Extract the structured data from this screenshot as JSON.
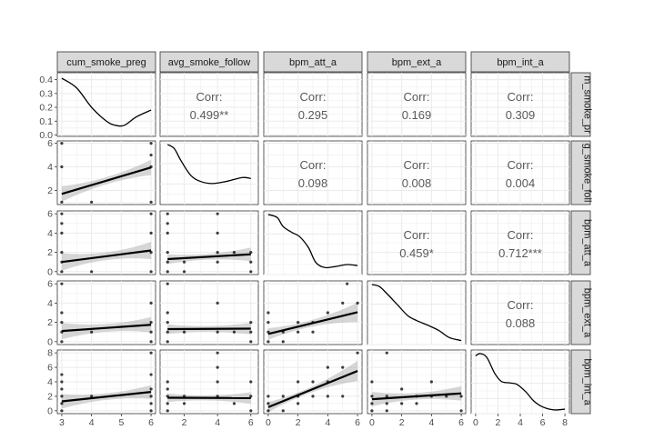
{
  "chart_data": {
    "type": "scatter-matrix",
    "variables": [
      "cum_smoke_preg",
      "avg_smoke_follow",
      "bpm_att_a",
      "bpm_ext_a",
      "bpm_int_a"
    ],
    "row_strip_labels": [
      "m_smoke_pr",
      "g_smoke_foll",
      "bpm_att_a",
      "bpm_ext_a",
      "bpm_int_a"
    ],
    "corr_label": "Corr:",
    "correlations": [
      {
        "row": 0,
        "col": 1,
        "value": "0.499**"
      },
      {
        "row": 0,
        "col": 2,
        "value": "0.295"
      },
      {
        "row": 0,
        "col": 3,
        "value": "0.169"
      },
      {
        "row": 0,
        "col": 4,
        "value": "0.309"
      },
      {
        "row": 1,
        "col": 2,
        "value": "0.098"
      },
      {
        "row": 1,
        "col": 3,
        "value": "0.008"
      },
      {
        "row": 1,
        "col": 4,
        "value": "0.004"
      },
      {
        "row": 2,
        "col": 3,
        "value": "0.459*"
      },
      {
        "row": 2,
        "col": 4,
        "value": "0.712***"
      },
      {
        "row": 3,
        "col": 4,
        "value": "0.088"
      }
    ],
    "x_axes": [
      {
        "range": [
          2.85,
          6.15
        ],
        "ticks": [
          3,
          4,
          5,
          6
        ]
      },
      {
        "range": [
          0.55,
          6.45
        ],
        "ticks": [
          2,
          4,
          6
        ]
      },
      {
        "range": [
          -0.3,
          6.3
        ],
        "ticks": [
          0,
          2,
          4,
          6
        ]
      },
      {
        "range": [
          -0.3,
          6.3
        ],
        "ticks": [
          0,
          2,
          4,
          6
        ]
      },
      {
        "range": [
          -0.4,
          8.4
        ],
        "ticks": [
          0,
          2,
          4,
          6,
          8
        ]
      }
    ],
    "y_axes": [
      {
        "range": [
          -0.01,
          0.45
        ],
        "ticks": [
          0.0,
          0.1,
          0.2,
          0.3,
          0.4
        ],
        "tick_labels": [
          "0.0",
          "0.1",
          "0.2",
          "0.3",
          "0.4"
        ]
      },
      {
        "range": [
          0.8,
          6.2
        ],
        "ticks": [
          2,
          4,
          6
        ],
        "tick_labels": [
          "2",
          "4",
          "6"
        ]
      },
      {
        "range": [
          -0.3,
          6.3
        ],
        "ticks": [
          0,
          2,
          4,
          6
        ],
        "tick_labels": [
          "0",
          "2",
          "4",
          "6"
        ]
      },
      {
        "range": [
          -0.3,
          6.3
        ],
        "ticks": [
          0,
          2,
          4,
          6
        ],
        "tick_labels": [
          "0",
          "2",
          "4",
          "6"
        ]
      },
      {
        "range": [
          -0.4,
          8.4
        ],
        "ticks": [
          0,
          2,
          4,
          6,
          8
        ],
        "tick_labels": [
          "0",
          "2",
          "4",
          "6",
          "8"
        ]
      }
    ],
    "densities": [
      {
        "var": 0,
        "x": [
          3.0,
          3.5,
          4.0,
          4.5,
          4.8,
          5.1,
          5.5,
          6.0
        ],
        "y": [
          0.41,
          0.34,
          0.2,
          0.1,
          0.07,
          0.07,
          0.13,
          0.18
        ]
      },
      {
        "var": 1,
        "x": [
          1.0,
          1.4,
          1.8,
          2.4,
          3.0,
          3.7,
          4.5,
          5.5,
          6.0
        ],
        "y": [
          6.0,
          5.6,
          4.4,
          2.9,
          2.3,
          2.1,
          2.3,
          2.7,
          2.6
        ]
      },
      {
        "var": 2,
        "x": [
          0.0,
          0.6,
          1.0,
          1.6,
          2.1,
          2.7,
          3.2,
          3.8,
          4.5,
          5.3,
          6.0
        ],
        "y": [
          6.0,
          5.7,
          4.8,
          4.2,
          3.8,
          2.7,
          1.2,
          0.7,
          0.8,
          1.0,
          0.9
        ]
      },
      {
        "var": 3,
        "x": [
          0.0,
          0.5,
          1.0,
          1.7,
          2.4,
          3.0,
          3.8,
          4.5,
          5.2,
          6.0
        ],
        "y": [
          6.0,
          5.8,
          5.1,
          4.0,
          2.9,
          2.4,
          1.9,
          1.4,
          0.7,
          0.4
        ]
      },
      {
        "var": 4,
        "x": [
          0.0,
          0.4,
          1.0,
          1.7,
          2.3,
          3.0,
          3.7,
          4.5,
          5.2,
          6.0,
          7.0,
          8.0
        ],
        "y": [
          7.7,
          8.0,
          7.5,
          5.4,
          4.3,
          4.1,
          3.9,
          2.9,
          1.7,
          0.9,
          0.5,
          0.6
        ]
      }
    ],
    "scatter_panels": [
      {
        "row": 1,
        "col": 0,
        "points": [
          [
            3,
            6
          ],
          [
            3,
            4
          ],
          [
            3,
            1
          ],
          [
            4,
            1
          ],
          [
            6,
            6
          ],
          [
            6,
            5
          ],
          [
            6,
            4
          ],
          [
            6,
            1
          ]
        ],
        "fit": [
          [
            3,
            1.7
          ],
          [
            6,
            3.95
          ]
        ],
        "band_half_width": [
          0.65,
          0.3,
          0.65
        ]
      },
      {
        "row": 2,
        "col": 0,
        "points": [
          [
            3,
            6
          ],
          [
            3,
            5
          ],
          [
            3,
            4
          ],
          [
            3,
            2
          ],
          [
            3,
            1
          ],
          [
            3,
            0
          ],
          [
            4,
            0
          ],
          [
            6,
            6
          ],
          [
            6,
            4
          ],
          [
            6,
            2
          ],
          [
            6,
            0
          ]
        ],
        "fit": [
          [
            3,
            1.0
          ],
          [
            6,
            2.2
          ]
        ],
        "band_half_width": [
          0.9,
          0.4,
          0.9
        ]
      },
      {
        "row": 2,
        "col": 1,
        "points": [
          [
            1,
            6
          ],
          [
            1,
            5
          ],
          [
            1,
            4
          ],
          [
            1,
            2
          ],
          [
            1,
            1
          ],
          [
            1,
            0
          ],
          [
            2,
            0
          ],
          [
            2,
            1
          ],
          [
            4,
            6
          ],
          [
            4,
            4
          ],
          [
            4,
            2
          ],
          [
            4,
            1
          ],
          [
            5,
            2
          ],
          [
            6,
            2
          ],
          [
            6,
            1
          ],
          [
            6,
            0
          ]
        ],
        "fit": [
          [
            1,
            1.3
          ],
          [
            6,
            1.8
          ]
        ],
        "band_half_width": [
          0.5,
          0.3,
          0.7
        ]
      },
      {
        "row": 2,
        "col": 2,
        "points": [],
        "fit": [],
        "band_half_width": []
      },
      {
        "row": 3,
        "col": 0,
        "points": [
          [
            3,
            6
          ],
          [
            3,
            3
          ],
          [
            3,
            2
          ],
          [
            3,
            1
          ],
          [
            3,
            0
          ],
          [
            4,
            1
          ],
          [
            6,
            4
          ],
          [
            6,
            2
          ],
          [
            6,
            1
          ],
          [
            6,
            0
          ]
        ],
        "fit": [
          [
            3,
            1.1
          ],
          [
            6,
            1.75
          ]
        ],
        "band_half_width": [
          0.85,
          0.4,
          0.8
        ]
      },
      {
        "row": 3,
        "col": 1,
        "points": [
          [
            1,
            6
          ],
          [
            1,
            3
          ],
          [
            1,
            2
          ],
          [
            1,
            1
          ],
          [
            1,
            0
          ],
          [
            2,
            1
          ],
          [
            4,
            4
          ],
          [
            4,
            1
          ],
          [
            5,
            1
          ],
          [
            6,
            2
          ],
          [
            6,
            1
          ],
          [
            6,
            0
          ]
        ],
        "fit": [
          [
            1,
            1.3
          ],
          [
            6,
            1.35
          ]
        ],
        "band_half_width": [
          0.5,
          0.3,
          0.6
        ]
      },
      {
        "row": 3,
        "col": 2,
        "points": [
          [
            0,
            0
          ],
          [
            0,
            1
          ],
          [
            0,
            2
          ],
          [
            0,
            3
          ],
          [
            1,
            0
          ],
          [
            1,
            1
          ],
          [
            2,
            1
          ],
          [
            2,
            2
          ],
          [
            3,
            1
          ],
          [
            3,
            2
          ],
          [
            4,
            3
          ],
          [
            5,
            4
          ],
          [
            5.3,
            6
          ],
          [
            6,
            4
          ]
        ],
        "fit": [
          [
            0,
            0.8
          ],
          [
            6,
            3.05
          ]
        ],
        "band_half_width": [
          0.6,
          0.35,
          1.0
        ]
      },
      {
        "row": 4,
        "col": 0,
        "points": [
          [
            3,
            5
          ],
          [
            3,
            4
          ],
          [
            3,
            3
          ],
          [
            3,
            2
          ],
          [
            3,
            1
          ],
          [
            3,
            0
          ],
          [
            4,
            2
          ],
          [
            6,
            8
          ],
          [
            6,
            5
          ],
          [
            6,
            3
          ],
          [
            6,
            2
          ],
          [
            6,
            1
          ],
          [
            6,
            0
          ]
        ],
        "fit": [
          [
            3,
            1.3
          ],
          [
            6,
            2.6
          ]
        ],
        "band_half_width": [
          1.0,
          0.45,
          0.95
        ]
      },
      {
        "row": 4,
        "col": 1,
        "points": [
          [
            1,
            4
          ],
          [
            1,
            3
          ],
          [
            1,
            2
          ],
          [
            1,
            1
          ],
          [
            1,
            0
          ],
          [
            2,
            2
          ],
          [
            2,
            1
          ],
          [
            4,
            8
          ],
          [
            4,
            6
          ],
          [
            4,
            4
          ],
          [
            4,
            2
          ],
          [
            5,
            1
          ],
          [
            6,
            4
          ],
          [
            6,
            2
          ],
          [
            6,
            0
          ]
        ],
        "fit": [
          [
            1,
            1.8
          ],
          [
            6,
            1.75
          ]
        ],
        "band_half_width": [
          0.6,
          0.35,
          0.8
        ]
      },
      {
        "row": 4,
        "col": 2,
        "points": [
          [
            0,
            0
          ],
          [
            0,
            1
          ],
          [
            0,
            2
          ],
          [
            1,
            0
          ],
          [
            1,
            2
          ],
          [
            2,
            1
          ],
          [
            2,
            2
          ],
          [
            2,
            4
          ],
          [
            3,
            2
          ],
          [
            3,
            4
          ],
          [
            4,
            2
          ],
          [
            4,
            4
          ],
          [
            4,
            6
          ],
          [
            5,
            2
          ],
          [
            5,
            6
          ],
          [
            6,
            8
          ]
        ],
        "fit": [
          [
            0,
            0.5
          ],
          [
            6,
            5.5
          ]
        ],
        "band_half_width": [
          0.7,
          0.4,
          1.4
        ]
      },
      {
        "row": 4,
        "col": 3,
        "points": [
          [
            0,
            4
          ],
          [
            0,
            2
          ],
          [
            0,
            1
          ],
          [
            0,
            0
          ],
          [
            1,
            8
          ],
          [
            1,
            2
          ],
          [
            1,
            1
          ],
          [
            1,
            0
          ],
          [
            2,
            3
          ],
          [
            2,
            1
          ],
          [
            3,
            2
          ],
          [
            3,
            1
          ],
          [
            4,
            4
          ],
          [
            4,
            2
          ],
          [
            5,
            2
          ],
          [
            6,
            2
          ],
          [
            6,
            0
          ]
        ],
        "fit": [
          [
            0,
            1.6
          ],
          [
            6,
            2.4
          ]
        ],
        "band_half_width": [
          1.0,
          0.45,
          1.0
        ]
      }
    ],
    "fill_only_panels": [
      {
        "row": 2,
        "col": 2
      }
    ]
  }
}
